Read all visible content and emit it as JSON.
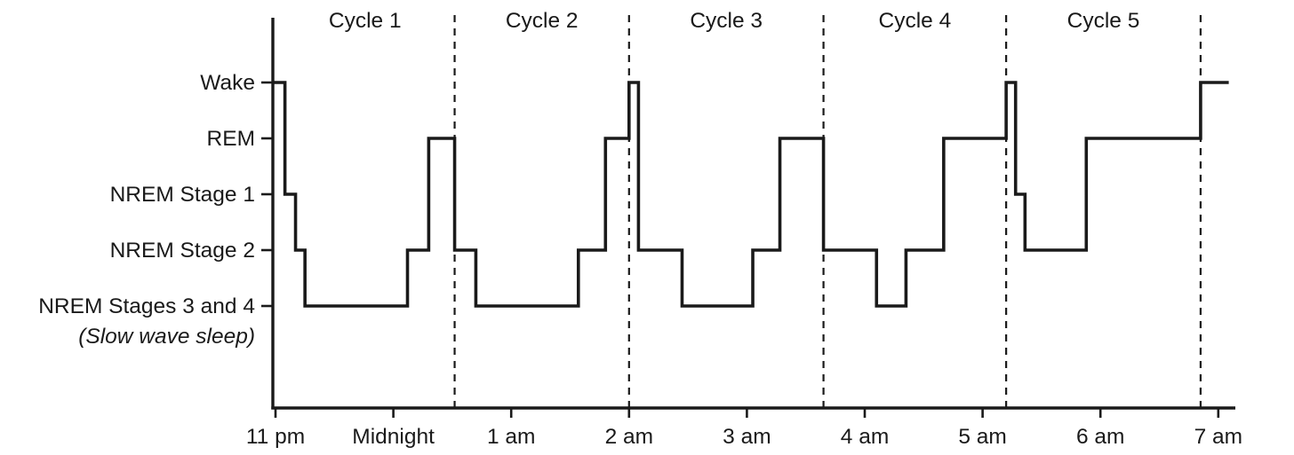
{
  "chart_data": {
    "type": "line",
    "subtype": "step-hypnogram",
    "title": "",
    "xlabel": "",
    "ylabel": "",
    "x_range": [
      0,
      8
    ],
    "grid": false,
    "colors": {
      "line": "#1a1a1a",
      "text": "#1a1a1a",
      "background": "#ffffff"
    },
    "stages": [
      {
        "key": "wake",
        "label": "Wake",
        "sublabel": ""
      },
      {
        "key": "rem",
        "label": "REM",
        "sublabel": ""
      },
      {
        "key": "n1",
        "label": "NREM Stage 1",
        "sublabel": ""
      },
      {
        "key": "n2",
        "label": "NREM Stage 2",
        "sublabel": ""
      },
      {
        "key": "n34",
        "label": "NREM Stages 3 and 4",
        "sublabel": "(Slow wave sleep)"
      }
    ],
    "x_ticks": [
      {
        "t": 0,
        "label": "11 pm"
      },
      {
        "t": 1,
        "label": "Midnight"
      },
      {
        "t": 2,
        "label": "1 am"
      },
      {
        "t": 3,
        "label": "2 am"
      },
      {
        "t": 4,
        "label": "3 am"
      },
      {
        "t": 5,
        "label": "4 am"
      },
      {
        "t": 6,
        "label": "5 am"
      },
      {
        "t": 7,
        "label": "6 am"
      },
      {
        "t": 8,
        "label": "7 am"
      }
    ],
    "cycles": [
      {
        "label": "Cycle 1"
      },
      {
        "label": "Cycle 2"
      },
      {
        "label": "Cycle 3"
      },
      {
        "label": "Cycle 4"
      },
      {
        "label": "Cycle 5"
      }
    ],
    "cycle_boundaries": [
      1.52,
      3.0,
      4.65,
      6.2,
      7.85
    ],
    "steps": [
      {
        "t": 0.0,
        "stage": "wake"
      },
      {
        "t": 0.08,
        "stage": "n1"
      },
      {
        "t": 0.17,
        "stage": "n2"
      },
      {
        "t": 0.25,
        "stage": "n34"
      },
      {
        "t": 1.12,
        "stage": "n2"
      },
      {
        "t": 1.3,
        "stage": "rem"
      },
      {
        "t": 1.52,
        "stage": "n2"
      },
      {
        "t": 1.7,
        "stage": "n34"
      },
      {
        "t": 2.57,
        "stage": "n2"
      },
      {
        "t": 2.8,
        "stage": "rem"
      },
      {
        "t": 3.0,
        "stage": "wake"
      },
      {
        "t": 3.08,
        "stage": "n2"
      },
      {
        "t": 3.45,
        "stage": "n34"
      },
      {
        "t": 4.05,
        "stage": "n2"
      },
      {
        "t": 4.28,
        "stage": "rem"
      },
      {
        "t": 4.65,
        "stage": "n2"
      },
      {
        "t": 5.1,
        "stage": "n34"
      },
      {
        "t": 5.35,
        "stage": "n2"
      },
      {
        "t": 5.67,
        "stage": "rem"
      },
      {
        "t": 6.2,
        "stage": "wake"
      },
      {
        "t": 6.28,
        "stage": "n1"
      },
      {
        "t": 6.36,
        "stage": "n2"
      },
      {
        "t": 6.88,
        "stage": "rem"
      },
      {
        "t": 7.85,
        "stage": "wake"
      }
    ],
    "t_end": 8.0
  }
}
